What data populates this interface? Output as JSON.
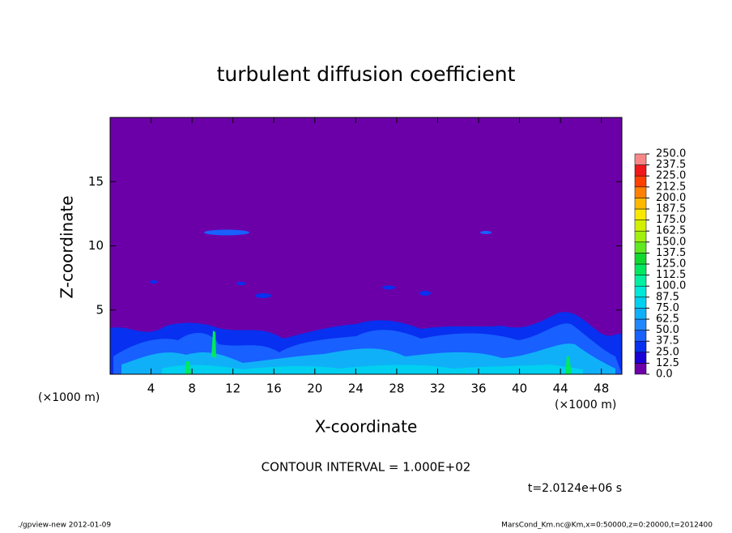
{
  "chart_data": {
    "type": "contour",
    "title": "turbulent diffusion coefficient",
    "xlabel": "X-coordinate",
    "ylabel": "Z-coordinate",
    "x_unit_left": "(×1000 m)",
    "x_unit_right": "(×1000 m)",
    "xlim": [
      0,
      50
    ],
    "ylim": [
      0,
      20
    ],
    "xticks": [
      4,
      8,
      12,
      16,
      20,
      24,
      28,
      32,
      36,
      40,
      44,
      48
    ],
    "yticks": [
      5,
      10,
      15
    ],
    "contour_note": "CONTOUR INTERVAL = 1.000E+02",
    "time_label": "t=2.0124e+06 s",
    "footer_left": "./gpview-new   2012-01-09",
    "footer_right": "MarsCond_Km.nc@Km,x=0:50000,z=0:20000,t=2012400",
    "colorbar": {
      "levels": [
        {
          "value": 0,
          "label": "0.0"
        },
        {
          "value": 12.5,
          "label": "12.5"
        },
        {
          "value": 25,
          "label": "25.0"
        },
        {
          "value": 37.5,
          "label": "37.5"
        },
        {
          "value": 50,
          "label": "50.0"
        },
        {
          "value": 62.5,
          "label": "62.5"
        },
        {
          "value": 75,
          "label": "75.0"
        },
        {
          "value": 87.5,
          "label": "87.5"
        },
        {
          "value": 100,
          "label": "100.0"
        },
        {
          "value": 112.5,
          "label": "112.5"
        },
        {
          "value": 125,
          "label": "125.0"
        },
        {
          "value": 137.5,
          "label": "137.5"
        },
        {
          "value": 150,
          "label": "150.0"
        },
        {
          "value": 162.5,
          "label": "162.5"
        },
        {
          "value": 175,
          "label": "175.0"
        },
        {
          "value": 187.5,
          "label": "187.5"
        },
        {
          "value": 200,
          "label": "200.0"
        },
        {
          "value": 212.5,
          "label": "212.5"
        },
        {
          "value": 225,
          "label": "225.0"
        },
        {
          "value": 237.5,
          "label": "237.5"
        },
        {
          "value": 250,
          "label": "250.0"
        }
      ],
      "colors": [
        "#6c00a8",
        "#1c00d8",
        "#0830f0",
        "#1860ff",
        "#2088ff",
        "#10b0f8",
        "#00d0f0",
        "#00e8d8",
        "#00f0a0",
        "#00e860",
        "#10d830",
        "#60e820",
        "#a0f010",
        "#d0f000",
        "#f8e800",
        "#ffb800",
        "#ff8000",
        "#ff4000",
        "#f01818",
        "#f88888"
      ]
    }
  }
}
